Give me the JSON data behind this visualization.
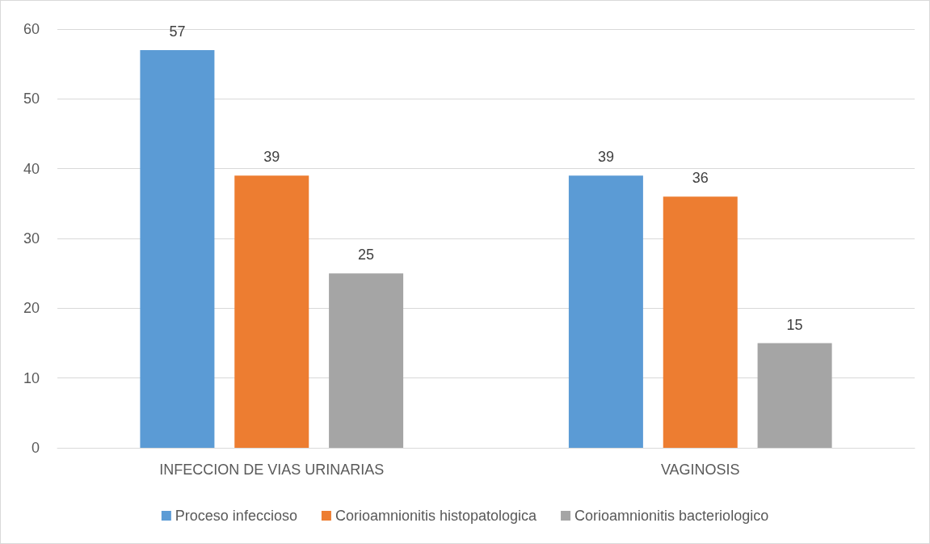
{
  "chart_data": {
    "type": "bar",
    "categories": [
      "INFECCION DE VIAS URINARIAS",
      "VAGINOSIS"
    ],
    "series": [
      {
        "name": "Proceso infeccioso",
        "color": "#5b9bd5",
        "values": [
          57,
          39
        ]
      },
      {
        "name": "Corioamnionitis histopatologica",
        "color": "#ed7d31",
        "values": [
          39,
          36
        ]
      },
      {
        "name": "Corioamnionitis bacteriologico",
        "color": "#a5a5a5",
        "values": [
          25,
          15
        ]
      }
    ],
    "ylim": [
      0,
      60
    ],
    "yticks": [
      0,
      10,
      20,
      30,
      40,
      50,
      60
    ],
    "grid": "y",
    "legend": "bottom",
    "data_labels": true
  }
}
